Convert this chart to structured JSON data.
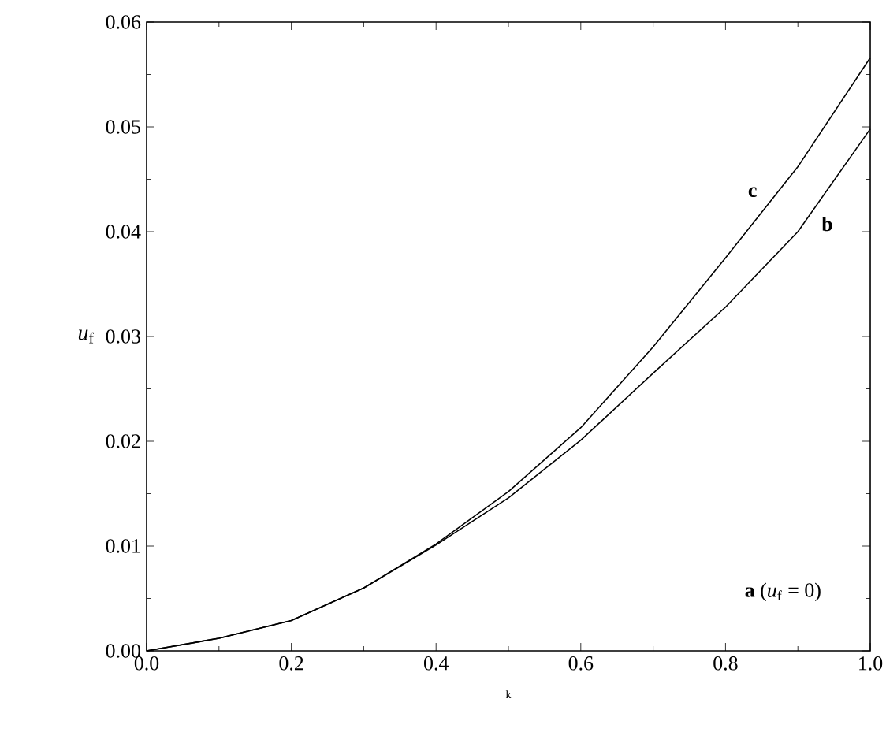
{
  "chart_data": {
    "type": "line",
    "xlabel": "k",
    "ylabel": "*u*$_{f}$",
    "series": [
      {
        "name": "b",
        "color": "#000000",
        "x": [
          0,
          0.1,
          0.2,
          0.3,
          0.4,
          0.5,
          0.6,
          0.7,
          0.8,
          0.9,
          1.0
        ],
        "values": [
          0,
          0.0012,
          0.0029,
          0.006,
          0.0101,
          0.0146,
          0.0201,
          0.0265,
          0.0328,
          0.04,
          0.0498
        ]
      },
      {
        "name": "c",
        "color": "#000000",
        "x": [
          0,
          0.1,
          0.2,
          0.3,
          0.4,
          0.5,
          0.6,
          0.7,
          0.8,
          0.9,
          1.0
        ],
        "values": [
          0,
          0.0012,
          0.0029,
          0.006,
          0.0102,
          0.0152,
          0.0213,
          0.029,
          0.0375,
          0.0462,
          0.0566
        ]
      }
    ],
    "annotations": [
      "**a** (*u*$_{f}$ = 0)"
    ],
    "xlim": [
      0,
      1.0
    ],
    "ylim": [
      0,
      0.06
    ],
    "xticks": [
      {
        "value": 0,
        "label": "0.0"
      },
      0.2,
      0.4,
      0.6,
      0.8,
      {
        "value": 1.0,
        "label": "1.0"
      }
    ],
    "yticks": [
      {
        "value": 0,
        "label": "0.00"
      },
      0.01,
      0.02,
      0.03,
      0.04,
      0.05,
      0.06
    ],
    "grid": false
  }
}
